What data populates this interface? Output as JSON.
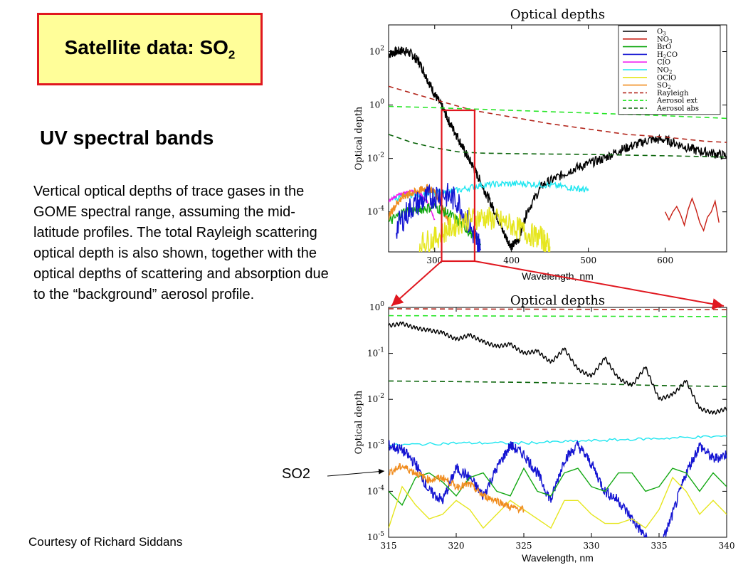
{
  "slide": {
    "title_main": "Satellite data: SO",
    "title_sub": "2",
    "heading": "UV spectral bands",
    "body": "Vertical optical depths of trace gases in the GOME spectral range, assuming the mid-latitude profiles. The total Rayleigh scattering optical depth is also shown, together with the optical depths of scattering and absorption due to the “background” aerosol profile.",
    "courtesy": "Courtesy of Richard Siddans",
    "annotation": "SO2"
  },
  "colors": {
    "title_fill": "#fffe99",
    "title_border": "#e0171f",
    "highlight": "#e0171f",
    "O3": "#000000",
    "NO3": "#c81e14",
    "BrO": "#13a813",
    "H2CO": "#1414d2",
    "ClO": "#f01ef0",
    "NO2": "#1ee6f0",
    "OClO": "#e6e61e",
    "SO2": "#f08c1e",
    "Rayleigh": "#b4281e",
    "Aerosol ext": "#28e628",
    "Aerosol abs": "#0a640a"
  },
  "chart_data": [
    {
      "type": "line",
      "title": "Optical depths",
      "xlabel": "Wavelength, nm",
      "ylabel": "Optical depth",
      "xlim": [
        240,
        680
      ],
      "ylim_log10": [
        -5.5,
        3
      ],
      "y_scale": "log",
      "legend_position": "top-right",
      "x_ticks": [
        "300",
        "400",
        "500",
        "600"
      ],
      "y_ticks": [
        {
          "base": "10",
          "exp": "2"
        },
        {
          "base": "10",
          "exp": "0"
        },
        {
          "base": "10",
          "exp": "-2"
        },
        {
          "base": "10",
          "exp": "-4"
        }
      ],
      "legend": [
        {
          "label": "O",
          "sub": "3",
          "style": "solid",
          "key": "O3"
        },
        {
          "label": "NO",
          "sub": "3",
          "style": "solid",
          "key": "NO3"
        },
        {
          "label": "BrO",
          "sub": "",
          "style": "solid",
          "key": "BrO"
        },
        {
          "label": "H",
          "sub": "2",
          "tail": "CO",
          "style": "solid",
          "key": "H2CO"
        },
        {
          "label": "ClO",
          "sub": "",
          "style": "solid",
          "key": "ClO"
        },
        {
          "label": "NO",
          "sub": "2",
          "style": "solid",
          "key": "NO2"
        },
        {
          "label": "OClO",
          "sub": "",
          "style": "solid",
          "key": "OClO"
        },
        {
          "label": "SO",
          "sub": "2",
          "style": "solid",
          "key": "SO2"
        },
        {
          "label": "Rayleigh",
          "sub": "",
          "style": "dashed",
          "key": "Rayleigh"
        },
        {
          "label": "Aerosol ext",
          "sub": "",
          "style": "dashed",
          "key": "Aerosol ext"
        },
        {
          "label": "Aerosol abs",
          "sub": "",
          "style": "dashed",
          "key": "Aerosol abs"
        }
      ],
      "series": [
        {
          "key": "O3",
          "x": [
            240,
            250,
            260,
            270,
            280,
            290,
            300,
            310,
            320,
            330,
            340,
            350,
            360,
            370,
            380,
            390,
            400,
            410,
            420,
            440,
            460,
            480,
            500,
            520,
            540,
            560,
            580,
            600,
            620,
            640,
            660,
            680
          ],
          "log10": [
            1.9,
            2.0,
            2.05,
            1.9,
            1.6,
            1.0,
            0.4,
            -0.1,
            -0.7,
            -1.2,
            -1.8,
            -2.3,
            -2.9,
            -3.5,
            -4.1,
            -4.8,
            -5.3,
            -5.0,
            -4.0,
            -3.0,
            -2.7,
            -2.4,
            -2.2,
            -2.0,
            -1.7,
            -1.5,
            -1.3,
            -1.3,
            -1.5,
            -1.7,
            -1.8,
            -1.9
          ],
          "noise": 0.18
        },
        {
          "key": "NO3",
          "x": [
            600,
            605,
            610,
            615,
            620,
            625,
            630,
            635,
            640,
            645,
            650,
            655,
            660,
            665,
            670
          ],
          "log10": [
            -4.0,
            -4.3,
            -4.0,
            -3.8,
            -4.1,
            -4.5,
            -3.9,
            -3.5,
            -3.9,
            -4.4,
            -4.7,
            -4.2,
            -4.0,
            -3.6,
            -4.4
          ]
        },
        {
          "key": "Rayleigh",
          "x": [
            240,
            300,
            350,
            400,
            450,
            500,
            550,
            600,
            650,
            680
          ],
          "log10": [
            0.7,
            0.2,
            -0.2,
            -0.45,
            -0.7,
            -0.9,
            -1.1,
            -1.2,
            -1.35,
            -1.4
          ],
          "dashed": true
        },
        {
          "key": "Aerosol ext",
          "x": [
            240,
            300,
            400,
            500,
            600,
            680
          ],
          "log10": [
            -0.05,
            -0.1,
            -0.2,
            -0.3,
            -0.4,
            -0.5
          ],
          "dashed": true
        },
        {
          "key": "Aerosol abs",
          "x": [
            240,
            270,
            300,
            330,
            360,
            400,
            500,
            600,
            680
          ],
          "log10": [
            -1.1,
            -1.4,
            -1.6,
            -1.75,
            -1.8,
            -1.82,
            -1.85,
            -1.9,
            -1.95
          ],
          "dashed": true
        },
        {
          "key": "NO2",
          "x": [
            245,
            270,
            300,
            330,
            360,
            390,
            420,
            450,
            480,
            500
          ],
          "log10": [
            -3.5,
            -3.35,
            -3.3,
            -3.2,
            -3.0,
            -2.95,
            -2.95,
            -3.0,
            -3.1,
            -3.2
          ],
          "noise": 0.12
        },
        {
          "key": "ClO",
          "x": [
            240,
            250,
            260,
            270,
            280,
            290,
            300
          ],
          "log10": [
            -3.6,
            -3.4,
            -3.3,
            -3.2,
            -3.3,
            -3.6,
            -4.3
          ],
          "noise": 0.05
        },
        {
          "key": "SO2",
          "x": [
            240,
            250,
            260,
            270,
            280,
            290,
            300,
            310,
            320
          ],
          "log10": [
            -4.2,
            -3.7,
            -3.4,
            -3.3,
            -3.2,
            -3.1,
            -3.25,
            -3.8,
            -4.6
          ],
          "noise": 0.15
        },
        {
          "key": "BrO",
          "x": [
            240,
            260,
            280,
            300,
            320,
            340,
            360
          ],
          "log10": [
            -4.4,
            -4.0,
            -3.9,
            -3.8,
            -4.1,
            -4.6,
            -5.2
          ],
          "noise": 0.2
        },
        {
          "key": "H2CO",
          "x": [
            250,
            270,
            290,
            310,
            330,
            350,
            360
          ],
          "log10": [
            -4.6,
            -3.8,
            -3.5,
            -3.3,
            -3.6,
            -4.8,
            -5.4
          ],
          "noise": 0.5
        },
        {
          "key": "OClO",
          "x": [
            280,
            300,
            320,
            340,
            360,
            380,
            400,
            420,
            440,
            450
          ],
          "log10": [
            -5.2,
            -5.0,
            -4.6,
            -4.3,
            -4.2,
            -4.3,
            -4.5,
            -4.8,
            -5.0,
            -5.3
          ],
          "noise": 0.45
        }
      ]
    },
    {
      "type": "line",
      "title": "Optical depths",
      "xlabel": "Wavelength, nm",
      "ylabel": "Optical depth",
      "xlim": [
        315,
        340
      ],
      "ylim_log10": [
        -5,
        0
      ],
      "y_scale": "log",
      "x_ticks": [
        "315",
        "320",
        "325",
        "330",
        "335",
        "340"
      ],
      "y_ticks": [
        {
          "base": "10",
          "exp": "0"
        },
        {
          "base": "10",
          "exp": "-1"
        },
        {
          "base": "10",
          "exp": "-2"
        },
        {
          "base": "10",
          "exp": "-3"
        },
        {
          "base": "10",
          "exp": "-4"
        },
        {
          "base": "10",
          "exp": "-5"
        }
      ],
      "series": [
        {
          "key": "Rayleigh",
          "x": [
            315,
            340
          ],
          "log10": [
            -0.03,
            -0.05
          ],
          "dashed": true
        },
        {
          "key": "Aerosol ext",
          "x": [
            315,
            340
          ],
          "log10": [
            -0.18,
            -0.2
          ],
          "dashed": true
        },
        {
          "key": "Aerosol abs",
          "x": [
            315,
            325,
            330,
            335,
            340
          ],
          "log10": [
            -1.6,
            -1.63,
            -1.66,
            -1.7,
            -1.72
          ],
          "dashed": true
        },
        {
          "key": "O3",
          "x": [
            315,
            316,
            317,
            318,
            319,
            320,
            321,
            322,
            323,
            324,
            325,
            326,
            327,
            328,
            329,
            330,
            331,
            332,
            333,
            334,
            335,
            336,
            337,
            338,
            339,
            340
          ],
          "log10": [
            -0.4,
            -0.35,
            -0.45,
            -0.5,
            -0.55,
            -0.7,
            -0.6,
            -0.75,
            -0.85,
            -0.8,
            -1.0,
            -0.95,
            -1.2,
            -0.9,
            -1.35,
            -1.5,
            -1.1,
            -1.55,
            -1.7,
            -1.3,
            -2.0,
            -1.9,
            -1.6,
            -2.2,
            -2.3,
            -2.2
          ],
          "wiggle": 0.08
        },
        {
          "key": "NO2",
          "x": [
            315,
            320,
            325,
            330,
            335,
            340
          ],
          "log10": [
            -3.0,
            -2.95,
            -2.95,
            -2.9,
            -2.85,
            -2.8
          ],
          "noise": 0.03
        },
        {
          "key": "H2CO",
          "x": [
            315,
            316,
            317,
            318,
            319,
            320,
            321,
            322,
            323,
            324,
            325,
            326,
            327,
            328,
            329,
            330,
            331,
            332,
            333,
            334,
            335,
            336,
            337,
            338,
            339,
            340
          ],
          "log10": [
            -3.0,
            -3.1,
            -3.4,
            -4.0,
            -4.2,
            -3.5,
            -3.7,
            -4.1,
            -3.5,
            -3.0,
            -3.2,
            -3.6,
            -4.2,
            -3.3,
            -3.0,
            -3.4,
            -4.0,
            -4.2,
            -4.6,
            -5.0,
            -5.3,
            -4.5,
            -3.6,
            -3.0,
            -3.3,
            -3.2
          ],
          "noise": 0.12
        },
        {
          "key": "BrO",
          "x": [
            315,
            316,
            317,
            318,
            319,
            320,
            321,
            322,
            323,
            324,
            325,
            326,
            327,
            328,
            329,
            330,
            331,
            332,
            333,
            334,
            335,
            336,
            337,
            338,
            339,
            340
          ],
          "log10": [
            -4.0,
            -4.3,
            -3.7,
            -3.6,
            -3.8,
            -4.1,
            -3.7,
            -3.6,
            -4.0,
            -4.1,
            -3.5,
            -4.0,
            -4.1,
            -3.6,
            -3.5,
            -3.9,
            -4.0,
            -3.6,
            -3.6,
            -4.0,
            -3.9,
            -3.5,
            -3.6,
            -4.0,
            -3.6,
            -3.9
          ]
        },
        {
          "key": "OClO",
          "x": [
            315,
            316,
            317,
            318,
            319,
            320,
            321,
            322,
            323,
            324,
            325,
            326,
            327,
            328,
            329,
            330,
            331,
            332,
            333,
            334,
            335,
            336,
            337,
            338,
            339,
            340
          ],
          "log10": [
            -4.8,
            -3.9,
            -4.3,
            -4.6,
            -4.5,
            -4.2,
            -4.4,
            -4.8,
            -4.5,
            -4.2,
            -4.4,
            -4.6,
            -4.8,
            -4.2,
            -4.2,
            -4.5,
            -4.7,
            -4.7,
            -4.6,
            -4.8,
            -4.4,
            -3.7,
            -4.0,
            -4.5,
            -4.2,
            -4.5
          ]
        },
        {
          "key": "SO2",
          "x": [
            315,
            316,
            317,
            318,
            319,
            320,
            321,
            322,
            323,
            324,
            325
          ],
          "log10": [
            -3.6,
            -3.45,
            -3.6,
            -3.75,
            -3.7,
            -3.9,
            -3.85,
            -4.1,
            -4.2,
            -4.35,
            -4.4
          ],
          "noise": 0.08
        }
      ]
    }
  ]
}
